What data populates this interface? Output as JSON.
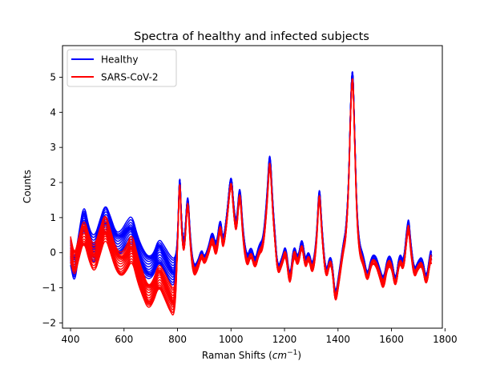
{
  "chart_data": {
    "type": "line",
    "title": "Spectra of healthy and infected subjects",
    "xlabel": "Raman Shifts",
    "xlabel_unit": "cm",
    "xlabel_unit_exp": "−1",
    "ylabel": "Counts",
    "xlim": [
      370,
      1790
    ],
    "ylim": [
      -2.15,
      5.9
    ],
    "xticks": [
      400,
      600,
      800,
      1000,
      1200,
      1400,
      1600,
      1800
    ],
    "yticks": [
      -2,
      -1,
      0,
      1,
      2,
      3,
      4,
      5
    ],
    "grid": false,
    "legend_position": "upper-left",
    "spectrum_x": [
      400,
      415,
      430,
      450,
      470,
      490,
      510,
      530,
      550,
      570,
      590,
      610,
      630,
      650,
      670,
      690,
      710,
      730,
      750,
      770,
      790,
      800,
      808,
      815,
      825,
      838,
      848,
      860,
      875,
      890,
      900,
      915,
      930,
      945,
      960,
      970,
      985,
      1000,
      1010,
      1020,
      1033,
      1045,
      1060,
      1075,
      1090,
      1105,
      1120,
      1135,
      1145,
      1155,
      1165,
      1175,
      1190,
      1205,
      1220,
      1235,
      1250,
      1265,
      1278,
      1290,
      1305,
      1320,
      1330,
      1340,
      1355,
      1370,
      1380,
      1390,
      1405,
      1420,
      1430,
      1440,
      1448,
      1455,
      1462,
      1470,
      1480,
      1495,
      1510,
      1525,
      1540,
      1555,
      1570,
      1585,
      1600,
      1615,
      1630,
      1645,
      1658,
      1665,
      1672,
      1685,
      1700,
      1715,
      1730,
      1745,
      1750
    ],
    "series": [
      {
        "name": "Healthy",
        "color": "#0000ff",
        "values": [
          0.0,
          -0.6,
          0.2,
          1.15,
          0.3,
          0.05,
          0.55,
          1.05,
          0.7,
          0.25,
          0.3,
          0.55,
          0.7,
          0.1,
          -0.25,
          -0.45,
          -0.35,
          0.1,
          -0.15,
          -0.45,
          -0.6,
          0.2,
          2.5,
          0.8,
          0.1,
          1.9,
          0.3,
          -0.5,
          -0.35,
          0.05,
          -0.2,
          0.1,
          0.6,
          0.05,
          1.0,
          0.2,
          1.05,
          2.35,
          1.3,
          0.7,
          2.05,
          0.5,
          -0.25,
          0.15,
          -0.3,
          0.2,
          0.3,
          1.6,
          3.0,
          1.5,
          0.4,
          -0.5,
          -0.2,
          0.2,
          -0.9,
          0.2,
          -0.3,
          0.45,
          -0.3,
          0.05,
          -0.5,
          0.35,
          2.05,
          0.6,
          -0.7,
          -0.1,
          -0.4,
          -1.35,
          -0.6,
          0.2,
          0.6,
          2.0,
          4.5,
          5.4,
          3.6,
          1.2,
          0.15,
          -0.15,
          -0.75,
          -0.15,
          -0.1,
          -0.5,
          -0.9,
          -0.2,
          -0.2,
          -0.95,
          0.0,
          -0.35,
          0.7,
          0.9,
          0.2,
          -0.6,
          -0.3,
          -0.15,
          -0.85,
          0.0,
          -0.1
        ]
      },
      {
        "name": "SARS-CoV-2",
        "color": "#ff0000",
        "values": [
          0.1,
          -0.4,
          0.1,
          0.7,
          0.1,
          -0.2,
          0.3,
          0.8,
          0.3,
          -0.2,
          -0.35,
          -0.15,
          0.2,
          -0.45,
          -0.9,
          -1.3,
          -1.1,
          -0.6,
          -0.9,
          -1.25,
          -1.5,
          0.1,
          2.35,
          0.6,
          -0.1,
          1.75,
          0.15,
          -0.6,
          -0.45,
          -0.05,
          -0.3,
          0.0,
          0.45,
          -0.1,
          0.85,
          0.05,
          0.9,
          2.2,
          1.15,
          0.55,
          1.9,
          0.35,
          -0.4,
          0.0,
          -0.45,
          0.05,
          0.15,
          1.4,
          2.8,
          1.3,
          0.25,
          -0.6,
          -0.3,
          0.1,
          -1.0,
          0.1,
          -0.4,
          0.3,
          -0.45,
          -0.05,
          -0.6,
          0.25,
          1.9,
          0.45,
          -0.8,
          -0.2,
          -0.5,
          -1.45,
          -0.7,
          0.1,
          0.45,
          1.85,
          4.3,
          5.2,
          3.4,
          1.05,
          0.0,
          -0.3,
          -0.85,
          -0.25,
          -0.25,
          -0.6,
          -1.0,
          -0.3,
          -0.35,
          -1.05,
          -0.15,
          -0.5,
          0.55,
          0.75,
          0.05,
          -0.7,
          -0.4,
          -0.3,
          -0.95,
          -0.15,
          -0.2
        ]
      }
    ]
  }
}
